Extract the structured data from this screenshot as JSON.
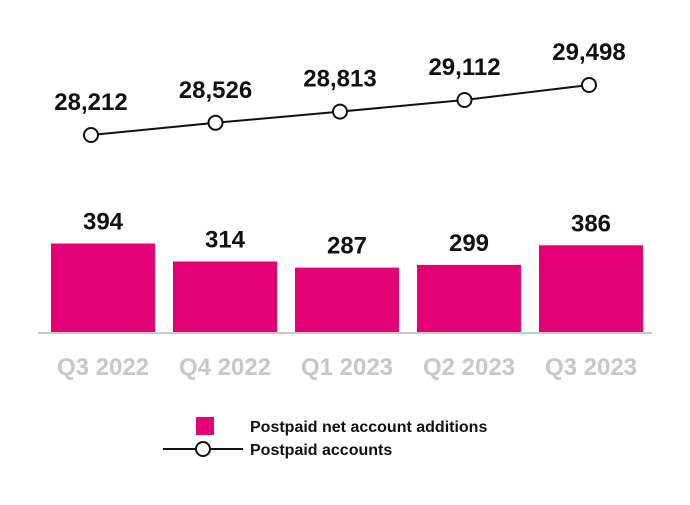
{
  "chart_data": {
    "type": "bar",
    "categories": [
      "Q3 2022",
      "Q4 2022",
      "Q1 2023",
      "Q2 2023",
      "Q3 2023"
    ],
    "series": [
      {
        "name": "Postpaid net account additions",
        "type": "bar",
        "values": [
          394,
          314,
          287,
          299,
          386
        ],
        "labels": [
          "394",
          "314",
          "287",
          "299",
          "386"
        ]
      },
      {
        "name": "Postpaid accounts",
        "type": "line",
        "values": [
          28212,
          28526,
          28813,
          29112,
          29498
        ],
        "labels": [
          "28,212",
          "28,526",
          "28,813",
          "29,112",
          "29,498"
        ]
      }
    ],
    "title": "",
    "xlabel": "",
    "ylabel": "",
    "grid": false,
    "legend_position": "bottom-center",
    "colors": {
      "bar": "#e20074",
      "line": "#111111",
      "marker_fill": "#ffffff",
      "tick_label": "#c7c7c7",
      "baseline": "#c8c8c8",
      "label": "#111111"
    }
  }
}
